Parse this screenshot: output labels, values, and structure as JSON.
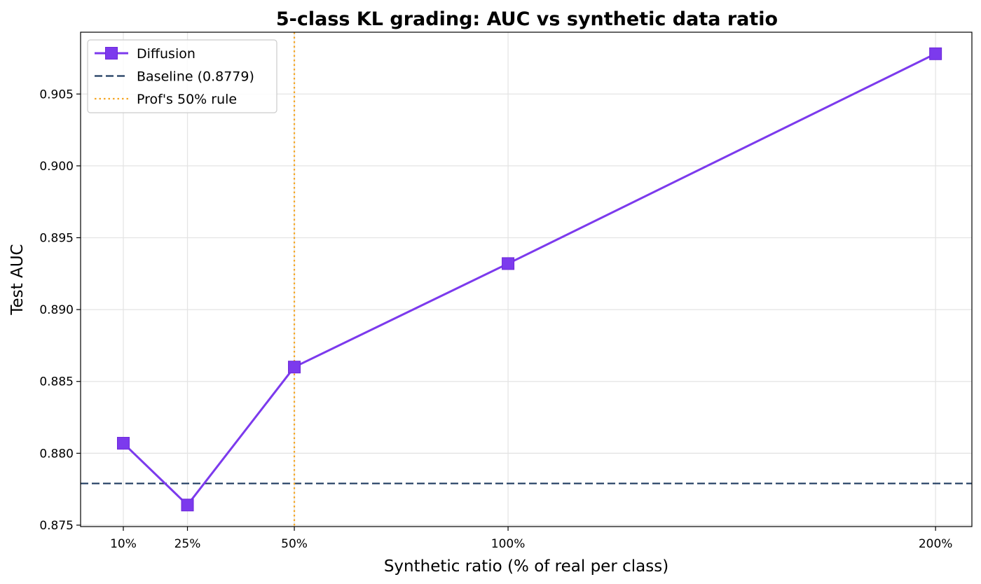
{
  "chart_data": {
    "type": "line",
    "title": "5-class KL grading: AUC vs synthetic data ratio",
    "xlabel": "Synthetic ratio (% of real per class)",
    "ylabel": "Test AUC",
    "x": [
      10,
      25,
      50,
      100,
      200
    ],
    "x_tick_labels": [
      "10%",
      "25%",
      "50%",
      "100%",
      "200%"
    ],
    "xlim": [
      0,
      208.5
    ],
    "ylim": [
      0.8749,
      0.9093
    ],
    "y_ticks": [
      0.875,
      0.88,
      0.885,
      0.89,
      0.895,
      0.9,
      0.905
    ],
    "y_tick_labels": [
      "0.875",
      "0.880",
      "0.885",
      "0.890",
      "0.895",
      "0.900",
      "0.905"
    ],
    "grid": true,
    "legend_position": "top-left",
    "series": [
      {
        "name": "Diffusion",
        "values": [
          0.8807,
          0.8764,
          0.886,
          0.8932,
          0.9078
        ],
        "color": "#7c3aed",
        "marker": "square",
        "line_style": "solid"
      }
    ],
    "reference_lines": [
      {
        "name": "Baseline (0.8779)",
        "orientation": "horizontal",
        "value": 0.8779,
        "color": "#1e3a5f",
        "line_style": "dashed"
      },
      {
        "name": "Prof's 50% rule",
        "orientation": "vertical",
        "value": 50,
        "color": "#f5a623",
        "line_style": "dotted"
      }
    ]
  }
}
